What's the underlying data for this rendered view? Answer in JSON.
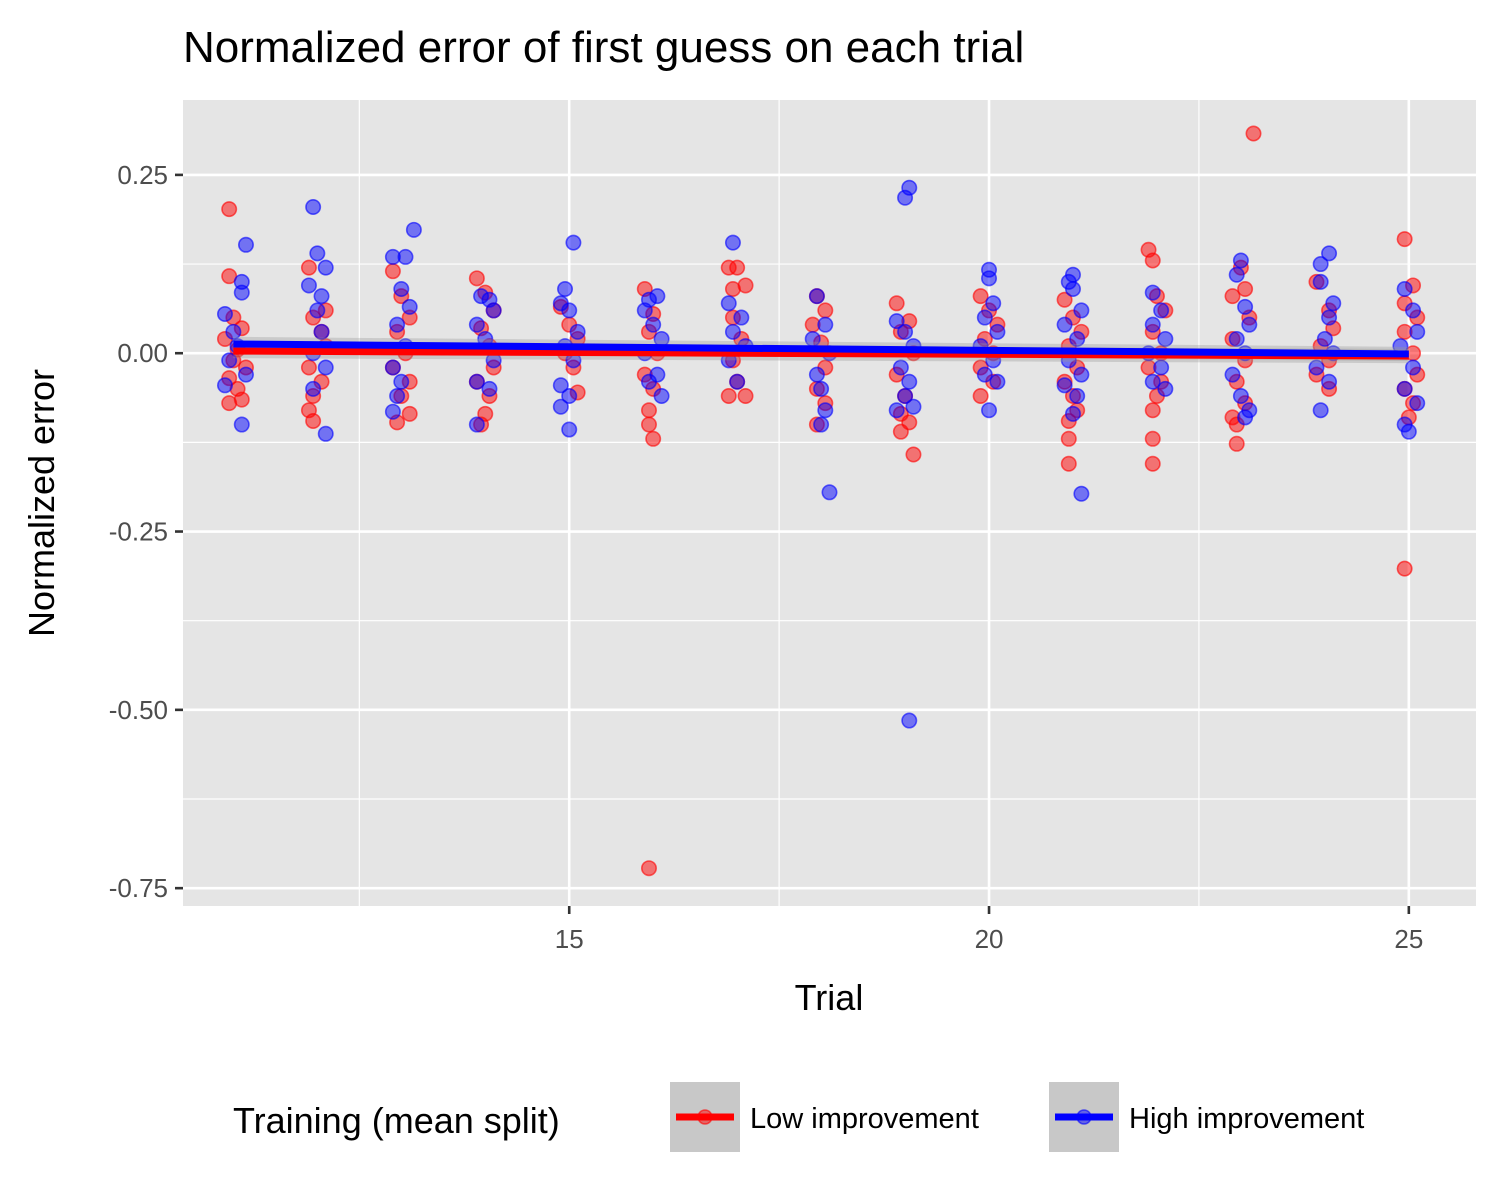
{
  "chart_data": {
    "type": "scatter",
    "title": "Normalized error of first guess on each trial",
    "xlabel": "Trial",
    "ylabel": "Normalized error",
    "xlim": [
      10.4,
      25.8
    ],
    "ylim": [
      -0.775,
      0.355
    ],
    "x_ticks": [
      15,
      20,
      25
    ],
    "x_tick_labels": [
      "15",
      "20",
      "25"
    ],
    "y_ticks": [
      0.25,
      0.0,
      -0.25,
      -0.5,
      -0.75
    ],
    "y_tick_labels": [
      "0.25",
      "0.00",
      "-0.25",
      "-0.50",
      "-0.75"
    ],
    "grid": true,
    "legend": {
      "title": "Training (mean split)",
      "position": "bottom",
      "entries": [
        "Low improvement",
        "High improvement"
      ]
    },
    "series": [
      {
        "name": "Low improvement",
        "color": "#ff0000",
        "trend": {
          "x": [
            11,
            25
          ],
          "y": [
            0.003,
            -0.004
          ]
        },
        "points": [
          [
            10.95,
            0.202
          ],
          [
            10.95,
            0.108
          ],
          [
            11.0,
            0.05
          ],
          [
            11.1,
            0.035
          ],
          [
            10.9,
            0.02
          ],
          [
            11.05,
            0.005
          ],
          [
            11.0,
            -0.01
          ],
          [
            11.15,
            -0.02
          ],
          [
            10.95,
            -0.035
          ],
          [
            11.05,
            -0.05
          ],
          [
            11.1,
            -0.065
          ],
          [
            10.95,
            -0.07
          ],
          [
            11.9,
            0.12
          ],
          [
            11.95,
            0.05
          ],
          [
            12.05,
            0.03
          ],
          [
            12.1,
            0.01
          ],
          [
            11.9,
            -0.02
          ],
          [
            12.05,
            -0.04
          ],
          [
            11.95,
            -0.06
          ],
          [
            11.9,
            -0.08
          ],
          [
            11.95,
            -0.095
          ],
          [
            12.1,
            0.06
          ],
          [
            12.9,
            0.115
          ],
          [
            13.0,
            0.08
          ],
          [
            13.1,
            0.05
          ],
          [
            12.95,
            0.03
          ],
          [
            13.05,
            0.0
          ],
          [
            12.9,
            -0.02
          ],
          [
            13.1,
            -0.04
          ],
          [
            13.0,
            -0.06
          ],
          [
            13.1,
            -0.085
          ],
          [
            12.95,
            -0.097
          ],
          [
            13.9,
            0.105
          ],
          [
            14.0,
            0.085
          ],
          [
            14.1,
            0.06
          ],
          [
            13.95,
            0.035
          ],
          [
            14.05,
            0.01
          ],
          [
            14.1,
            -0.02
          ],
          [
            13.9,
            -0.04
          ],
          [
            14.05,
            -0.06
          ],
          [
            14.0,
            -0.085
          ],
          [
            13.95,
            -0.1
          ],
          [
            14.9,
            0.065
          ],
          [
            15.0,
            0.04
          ],
          [
            15.1,
            0.02
          ],
          [
            14.95,
            0.0
          ],
          [
            15.05,
            -0.02
          ],
          [
            15.1,
            -0.055
          ],
          [
            15.9,
            0.09
          ],
          [
            16.0,
            0.055
          ],
          [
            15.95,
            0.03
          ],
          [
            16.05,
            0.0
          ],
          [
            15.9,
            -0.03
          ],
          [
            16.0,
            -0.05
          ],
          [
            15.95,
            -0.08
          ],
          [
            15.95,
            -0.1
          ],
          [
            16.0,
            -0.12
          ],
          [
            15.95,
            -0.722
          ],
          [
            16.9,
            0.12
          ],
          [
            17.0,
            0.12
          ],
          [
            16.95,
            0.09
          ],
          [
            17.1,
            0.095
          ],
          [
            16.95,
            0.05
          ],
          [
            17.05,
            0.02
          ],
          [
            16.95,
            -0.01
          ],
          [
            17.0,
            -0.04
          ],
          [
            16.9,
            -0.06
          ],
          [
            17.1,
            -0.06
          ],
          [
            17.95,
            0.08
          ],
          [
            18.05,
            0.06
          ],
          [
            17.9,
            0.04
          ],
          [
            18.0,
            0.015
          ],
          [
            18.05,
            -0.02
          ],
          [
            17.95,
            -0.05
          ],
          [
            18.05,
            -0.07
          ],
          [
            17.95,
            -0.1
          ],
          [
            18.9,
            0.07
          ],
          [
            19.05,
            0.045
          ],
          [
            18.95,
            0.03
          ],
          [
            19.1,
            0.0
          ],
          [
            18.9,
            -0.03
          ],
          [
            19.0,
            -0.06
          ],
          [
            18.95,
            -0.085
          ],
          [
            19.05,
            -0.097
          ],
          [
            18.95,
            -0.11
          ],
          [
            19.1,
            -0.142
          ],
          [
            19.9,
            0.08
          ],
          [
            20.0,
            0.06
          ],
          [
            20.1,
            0.04
          ],
          [
            19.95,
            0.02
          ],
          [
            20.05,
            0.0
          ],
          [
            19.9,
            -0.02
          ],
          [
            20.05,
            -0.04
          ],
          [
            19.9,
            -0.06
          ],
          [
            20.9,
            0.075
          ],
          [
            21.0,
            0.05
          ],
          [
            21.1,
            0.03
          ],
          [
            20.95,
            0.01
          ],
          [
            21.05,
            -0.02
          ],
          [
            20.9,
            -0.04
          ],
          [
            21.0,
            -0.06
          ],
          [
            21.05,
            -0.08
          ],
          [
            20.95,
            -0.095
          ],
          [
            20.95,
            -0.12
          ],
          [
            20.95,
            -0.155
          ],
          [
            21.9,
            0.145
          ],
          [
            21.95,
            0.13
          ],
          [
            22.0,
            0.08
          ],
          [
            22.1,
            0.06
          ],
          [
            21.95,
            0.03
          ],
          [
            22.05,
            0.0
          ],
          [
            21.9,
            -0.02
          ],
          [
            22.05,
            -0.04
          ],
          [
            22.0,
            -0.06
          ],
          [
            21.95,
            -0.08
          ],
          [
            21.95,
            -0.12
          ],
          [
            21.95,
            -0.155
          ],
          [
            22.9,
            0.08
          ],
          [
            23.0,
            0.12
          ],
          [
            23.05,
            0.09
          ],
          [
            23.1,
            0.05
          ],
          [
            22.9,
            0.02
          ],
          [
            23.05,
            -0.01
          ],
          [
            22.95,
            -0.04
          ],
          [
            23.05,
            -0.07
          ],
          [
            22.9,
            -0.09
          ],
          [
            22.95,
            -0.1
          ],
          [
            22.95,
            -0.127
          ],
          [
            23.15,
            0.308
          ],
          [
            23.9,
            0.1
          ],
          [
            24.05,
            0.06
          ],
          [
            24.1,
            0.035
          ],
          [
            23.95,
            0.01
          ],
          [
            24.05,
            -0.01
          ],
          [
            23.9,
            -0.03
          ],
          [
            24.05,
            -0.05
          ],
          [
            24.95,
            0.16
          ],
          [
            25.05,
            0.095
          ],
          [
            24.95,
            0.07
          ],
          [
            25.1,
            0.05
          ],
          [
            24.95,
            0.03
          ],
          [
            25.05,
            0.0
          ],
          [
            25.1,
            -0.03
          ],
          [
            24.95,
            -0.05
          ],
          [
            25.05,
            -0.07
          ],
          [
            25.0,
            -0.09
          ],
          [
            24.95,
            -0.302
          ]
        ]
      },
      {
        "name": "High improvement",
        "color": "#0000ff",
        "trend": {
          "x": [
            11,
            25
          ],
          "y": [
            0.013,
            -0.001
          ]
        },
        "points": [
          [
            11.15,
            0.152
          ],
          [
            11.1,
            0.1
          ],
          [
            11.1,
            0.085
          ],
          [
            10.9,
            0.055
          ],
          [
            11.0,
            0.03
          ],
          [
            11.05,
            0.01
          ],
          [
            10.95,
            -0.01
          ],
          [
            11.15,
            -0.03
          ],
          [
            10.9,
            -0.045
          ],
          [
            11.1,
            -0.1
          ],
          [
            11.95,
            0.205
          ],
          [
            12.0,
            0.14
          ],
          [
            12.1,
            0.12
          ],
          [
            11.9,
            0.095
          ],
          [
            12.05,
            0.08
          ],
          [
            12.0,
            0.06
          ],
          [
            12.05,
            0.03
          ],
          [
            11.95,
            0.0
          ],
          [
            12.1,
            -0.02
          ],
          [
            11.95,
            -0.05
          ],
          [
            12.1,
            -0.113
          ],
          [
            12.9,
            0.135
          ],
          [
            13.15,
            0.173
          ],
          [
            13.05,
            0.135
          ],
          [
            13.0,
            0.09
          ],
          [
            13.1,
            0.065
          ],
          [
            12.95,
            0.04
          ],
          [
            13.05,
            0.01
          ],
          [
            12.9,
            -0.02
          ],
          [
            13.0,
            -0.04
          ],
          [
            12.95,
            -0.06
          ],
          [
            12.9,
            -0.082
          ],
          [
            13.95,
            0.08
          ],
          [
            14.05,
            0.075
          ],
          [
            14.1,
            0.06
          ],
          [
            13.9,
            0.04
          ],
          [
            14.0,
            0.02
          ],
          [
            14.1,
            -0.01
          ],
          [
            13.9,
            -0.04
          ],
          [
            14.05,
            -0.05
          ],
          [
            13.9,
            -0.1
          ],
          [
            15.05,
            0.155
          ],
          [
            14.95,
            0.09
          ],
          [
            14.9,
            0.07
          ],
          [
            15.0,
            0.06
          ],
          [
            15.1,
            0.03
          ],
          [
            14.95,
            0.01
          ],
          [
            15.05,
            -0.01
          ],
          [
            14.9,
            -0.045
          ],
          [
            15.0,
            -0.06
          ],
          [
            14.9,
            -0.075
          ],
          [
            15.0,
            -0.107
          ],
          [
            16.05,
            0.08
          ],
          [
            15.95,
            0.075
          ],
          [
            15.9,
            0.06
          ],
          [
            16.0,
            0.04
          ],
          [
            16.1,
            0.02
          ],
          [
            15.9,
            0.0
          ],
          [
            16.05,
            -0.03
          ],
          [
            15.95,
            -0.04
          ],
          [
            16.1,
            -0.06
          ],
          [
            16.95,
            0.155
          ],
          [
            16.9,
            0.07
          ],
          [
            17.05,
            0.05
          ],
          [
            16.95,
            0.03
          ],
          [
            17.1,
            0.01
          ],
          [
            16.9,
            -0.01
          ],
          [
            17.0,
            -0.04
          ],
          [
            17.95,
            0.08
          ],
          [
            18.05,
            0.04
          ],
          [
            17.9,
            0.02
          ],
          [
            18.1,
            0.0
          ],
          [
            17.95,
            -0.03
          ],
          [
            18.0,
            -0.05
          ],
          [
            18.05,
            -0.08
          ],
          [
            18.0,
            -0.1
          ],
          [
            18.1,
            -0.195
          ],
          [
            19.05,
            0.232
          ],
          [
            19.0,
            0.218
          ],
          [
            18.9,
            0.045
          ],
          [
            19.0,
            0.03
          ],
          [
            19.1,
            0.01
          ],
          [
            18.95,
            -0.02
          ],
          [
            19.05,
            -0.04
          ],
          [
            19.0,
            -0.06
          ],
          [
            18.9,
            -0.08
          ],
          [
            19.1,
            -0.075
          ],
          [
            19.05,
            -0.515
          ],
          [
            20.0,
            0.117
          ],
          [
            20.0,
            0.105
          ],
          [
            20.05,
            0.07
          ],
          [
            19.95,
            0.05
          ],
          [
            20.1,
            0.03
          ],
          [
            19.9,
            0.01
          ],
          [
            20.05,
            -0.01
          ],
          [
            19.95,
            -0.03
          ],
          [
            20.1,
            -0.04
          ],
          [
            20.0,
            -0.08
          ],
          [
            21.0,
            0.11
          ],
          [
            20.95,
            0.1
          ],
          [
            21.0,
            0.09
          ],
          [
            21.1,
            0.06
          ],
          [
            20.9,
            0.04
          ],
          [
            21.05,
            0.02
          ],
          [
            20.95,
            -0.01
          ],
          [
            21.1,
            -0.03
          ],
          [
            20.9,
            -0.045
          ],
          [
            21.05,
            -0.06
          ],
          [
            21.0,
            -0.085
          ],
          [
            21.1,
            -0.197
          ],
          [
            21.95,
            0.085
          ],
          [
            22.05,
            0.06
          ],
          [
            21.95,
            0.04
          ],
          [
            22.1,
            0.02
          ],
          [
            21.9,
            0.0
          ],
          [
            22.05,
            -0.02
          ],
          [
            21.95,
            -0.04
          ],
          [
            22.1,
            -0.05
          ],
          [
            23.0,
            0.13
          ],
          [
            22.95,
            0.11
          ],
          [
            23.05,
            0.065
          ],
          [
            23.1,
            0.04
          ],
          [
            22.95,
            0.02
          ],
          [
            23.05,
            0.0
          ],
          [
            22.9,
            -0.03
          ],
          [
            23.0,
            -0.06
          ],
          [
            23.1,
            -0.08
          ],
          [
            23.05,
            -0.09
          ],
          [
            24.05,
            0.14
          ],
          [
            23.95,
            0.125
          ],
          [
            23.95,
            0.1
          ],
          [
            24.1,
            0.07
          ],
          [
            24.05,
            0.05
          ],
          [
            24.0,
            0.02
          ],
          [
            24.1,
            0.0
          ],
          [
            23.9,
            -0.02
          ],
          [
            24.05,
            -0.04
          ],
          [
            23.95,
            -0.08
          ],
          [
            24.95,
            0.09
          ],
          [
            25.05,
            0.06
          ],
          [
            25.1,
            0.03
          ],
          [
            24.9,
            0.01
          ],
          [
            25.05,
            -0.02
          ],
          [
            24.95,
            -0.05
          ],
          [
            25.1,
            -0.07
          ],
          [
            24.95,
            -0.1
          ],
          [
            25.0,
            -0.11
          ]
        ]
      }
    ]
  }
}
